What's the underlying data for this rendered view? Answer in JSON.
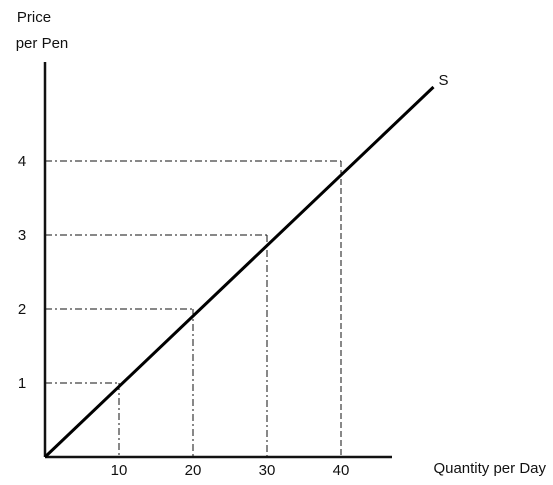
{
  "chart_data": {
    "type": "line",
    "ylabel": [
      "Price",
      "per Pen"
    ],
    "xlabel": "Quantity per Day",
    "x_ticks": [
      10,
      20,
      30,
      40
    ],
    "y_ticks": [
      1,
      2,
      3,
      4
    ],
    "xlim": [
      0,
      55
    ],
    "ylim": [
      0,
      5.2
    ],
    "grid": false,
    "series": [
      {
        "name": "S",
        "x": [
          0,
          10,
          20,
          30,
          40,
          52.5
        ],
        "y": [
          0,
          1,
          2,
          3,
          4,
          5
        ]
      }
    ],
    "guide_points": [
      {
        "x": 10,
        "y": 1
      },
      {
        "x": 20,
        "y": 2
      },
      {
        "x": 30,
        "y": 3
      },
      {
        "x": 40,
        "y": 4
      }
    ]
  }
}
